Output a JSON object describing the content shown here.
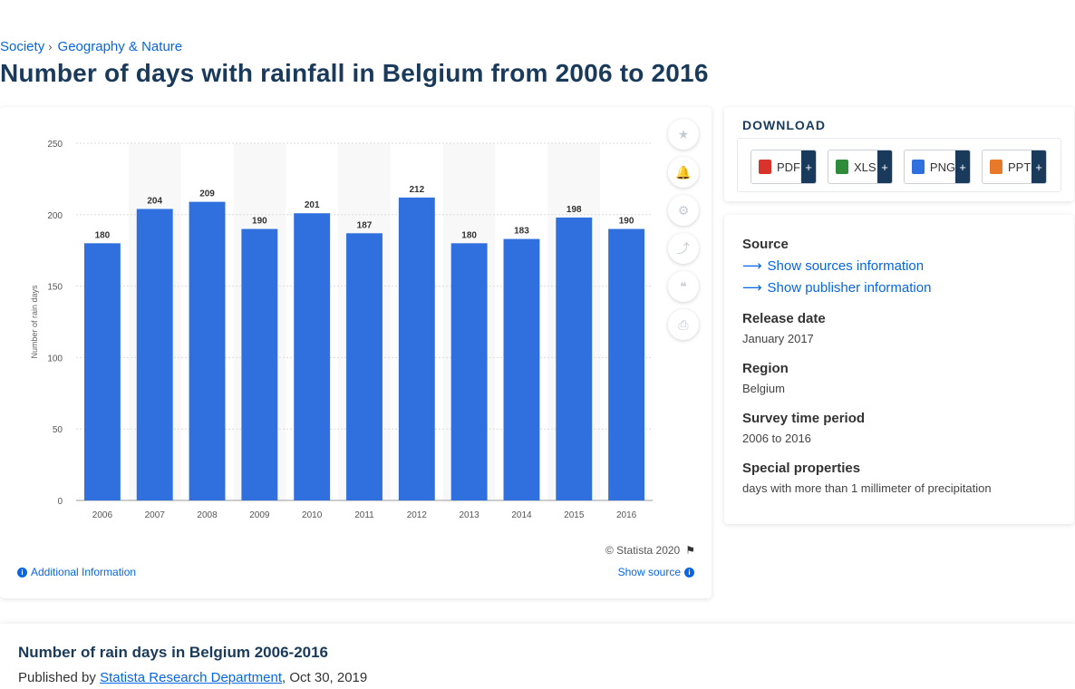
{
  "breadcrumb": {
    "item1": "Society",
    "item2": "Geography & Nature"
  },
  "page_title": "Number of days with rainfall in Belgium from 2006 to 2016",
  "chart_data": {
    "type": "bar",
    "categories": [
      "2006",
      "2007",
      "2008",
      "2009",
      "2010",
      "2011",
      "2012",
      "2013",
      "2014",
      "2015",
      "2016"
    ],
    "values": [
      180,
      204,
      209,
      190,
      201,
      187,
      212,
      180,
      183,
      198,
      190
    ],
    "title": "",
    "xlabel": "",
    "ylabel": "Number of rain days",
    "ylim": [
      0,
      250
    ],
    "yticks": [
      0,
      50,
      100,
      150,
      200,
      250
    ],
    "bar_color": "#2f70de",
    "band_color": "#f8f8f9",
    "grid": true,
    "legend": "none"
  },
  "toolbar": {
    "icons": [
      "star-icon",
      "bell-icon",
      "gear-icon",
      "share-icon",
      "quote-icon",
      "print-icon"
    ],
    "glyphs": [
      "★",
      "🔔",
      "⚙",
      "⤴",
      "❝",
      "⎙"
    ]
  },
  "chart_footer": {
    "copyright": "© Statista 2020",
    "additional_info": "Additional Information",
    "show_source": "Show source"
  },
  "download": {
    "title": "DOWNLOAD",
    "buttons": [
      {
        "label": "PDF",
        "color": "#d9342b"
      },
      {
        "label": "XLS",
        "color": "#2e8b3a"
      },
      {
        "label": "PNG",
        "color": "#2f70de"
      },
      {
        "label": "PPT",
        "color": "#e8792b"
      }
    ],
    "plus": "+"
  },
  "meta": {
    "source_label": "Source",
    "show_sources": "Show sources information",
    "show_publisher": "Show publisher information",
    "release_label": "Release date",
    "release_value": "January 2017",
    "region_label": "Region",
    "region_value": "Belgium",
    "survey_label": "Survey time period",
    "survey_value": "2006 to 2016",
    "special_label": "Special properties",
    "special_value": "days with more than 1 millimeter of precipitation"
  },
  "bottom": {
    "title": "Number of rain days in Belgium 2006-2016",
    "published_by_prefix": "Published by",
    "publisher": "Statista Research Department",
    "date": ", Oct 30, 2019"
  }
}
